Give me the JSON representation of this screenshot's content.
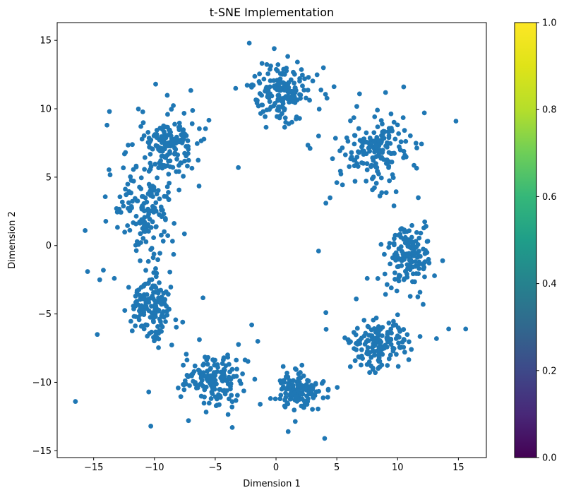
{
  "chart_data": {
    "type": "scatter",
    "title": "t-SNE Implementation",
    "xlabel": "Dimension 1",
    "ylabel": "Dimension 2",
    "xlim": [
      -18.0,
      17.3
    ],
    "ylim": [
      -15.5,
      16.3
    ],
    "xticks": [
      -15,
      -10,
      -5,
      0,
      5,
      10,
      15
    ],
    "yticks": [
      -15,
      -10,
      -5,
      0,
      5,
      10,
      15
    ],
    "grid": false,
    "point_color": "#1f77b4",
    "colorbar": {
      "colormap": "viridis",
      "range": [
        0.0,
        1.0
      ],
      "ticks": [
        0.0,
        0.2,
        0.4,
        0.6,
        0.8,
        1.0
      ],
      "tick_labels": [
        "0.0",
        "0.2",
        "0.4",
        "0.6",
        "0.8",
        "1.0"
      ]
    },
    "clusters": [
      {
        "center": [
          0.5,
          11.3
        ],
        "spread": [
          1.3,
          1.0
        ],
        "count": 170
      },
      {
        "center": [
          8.2,
          7.0
        ],
        "spread": [
          1.4,
          1.3
        ],
        "count": 170
      },
      {
        "center": [
          11.0,
          -0.8
        ],
        "spread": [
          0.9,
          1.1
        ],
        "count": 150
      },
      {
        "center": [
          8.3,
          -7.2
        ],
        "spread": [
          1.2,
          0.9
        ],
        "count": 160
      },
      {
        "center": [
          1.7,
          -10.6
        ],
        "spread": [
          0.9,
          0.7
        ],
        "count": 140
      },
      {
        "center": [
          -5.0,
          -9.8
        ],
        "spread": [
          1.3,
          0.9
        ],
        "count": 160
      },
      {
        "center": [
          -10.3,
          -4.5
        ],
        "spread": [
          1.0,
          1.2
        ],
        "count": 150
      },
      {
        "center": [
          -10.8,
          2.2
        ],
        "spread": [
          1.1,
          1.6
        ],
        "count": 150
      },
      {
        "center": [
          -9.0,
          7.2
        ],
        "spread": [
          1.5,
          1.3
        ],
        "count": 170
      }
    ],
    "outliers": [
      [
        -16.5,
        -11.4
      ],
      [
        -15.7,
        1.1
      ],
      [
        -15.5,
        -1.9
      ],
      [
        -14.7,
        -6.5
      ],
      [
        -14.5,
        -2.5
      ],
      [
        -14.2,
        -1.8
      ],
      [
        -13.9,
        8.8
      ],
      [
        -13.7,
        9.8
      ],
      [
        -13.3,
        -2.4
      ],
      [
        -9.9,
        11.8
      ],
      [
        -10.3,
        -13.2
      ],
      [
        -7.2,
        -12.8
      ],
      [
        -3.6,
        -13.3
      ],
      [
        -3.1,
        5.7
      ],
      [
        -2.2,
        14.8
      ],
      [
        -2.0,
        -5.8
      ],
      [
        -1.5,
        -7.0
      ],
      [
        -1.3,
        -11.6
      ],
      [
        3.5,
        -0.4
      ],
      [
        4.0,
        -14.1
      ],
      [
        4.1,
        -4.9
      ],
      [
        4.1,
        3.1
      ],
      [
        4.3,
        -10.5
      ],
      [
        3.9,
        13.0
      ],
      [
        14.8,
        9.1
      ],
      [
        15.6,
        -6.1
      ],
      [
        14.2,
        -6.1
      ],
      [
        13.2,
        -6.8
      ],
      [
        12.1,
        -4.3
      ],
      [
        11.7,
        3.5
      ],
      [
        10.5,
        11.6
      ],
      [
        7.5,
        -2.4
      ],
      [
        6.6,
        -3.9
      ],
      [
        6.5,
        4.7
      ],
      [
        5.0,
        4.6
      ],
      [
        9.7,
        2.9
      ],
      [
        2.8,
        7.1
      ],
      [
        1.0,
        -13.6
      ],
      [
        12.2,
        9.7
      ]
    ]
  }
}
